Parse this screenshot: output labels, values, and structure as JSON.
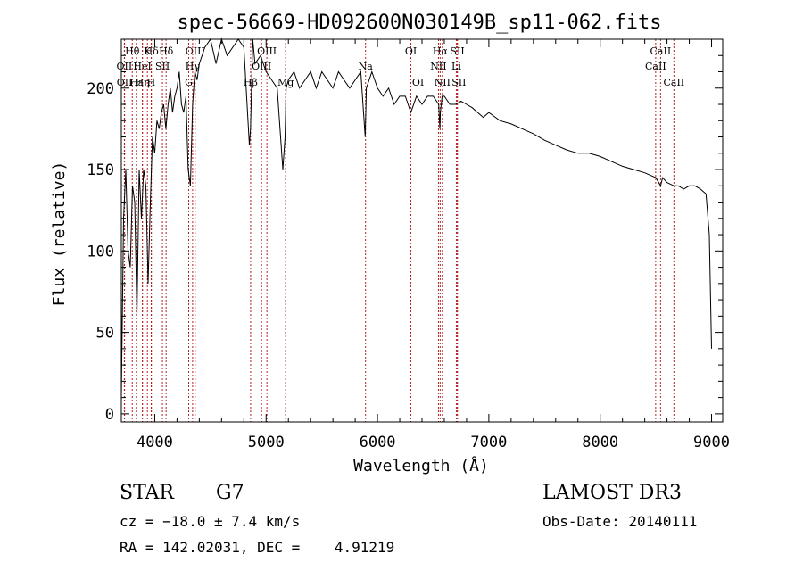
{
  "chart_data": {
    "type": "line",
    "title": "spec-56669-HD092600N030149B_sp11-062.fits",
    "xlabel": "Wavelength (Å)",
    "ylabel": "Flux (relative)",
    "xlim": [
      3700,
      9100
    ],
    "ylim": [
      -5,
      230
    ],
    "x_ticks": [
      4000,
      5000,
      6000,
      7000,
      8000,
      9000
    ],
    "y_ticks": [
      0,
      50,
      100,
      150,
      200
    ],
    "grid": false,
    "line_color": "#000000",
    "marker_color": "#b22222",
    "series": [
      {
        "name": "spectrum",
        "x": [
          3700,
          3720,
          3740,
          3760,
          3780,
          3800,
          3820,
          3840,
          3860,
          3880,
          3900,
          3920,
          3940,
          3960,
          3980,
          4000,
          4020,
          4040,
          4060,
          4080,
          4100,
          4120,
          4140,
          4160,
          4180,
          4200,
          4220,
          4240,
          4260,
          4280,
          4300,
          4320,
          4340,
          4360,
          4380,
          4400,
          4450,
          4500,
          4550,
          4600,
          4650,
          4700,
          4750,
          4800,
          4850,
          4860,
          4880,
          4900,
          4950,
          5000,
          5050,
          5100,
          5150,
          5170,
          5180,
          5200,
          5250,
          5300,
          5350,
          5400,
          5450,
          5500,
          5550,
          5600,
          5650,
          5700,
          5750,
          5800,
          5850,
          5890,
          5895,
          5900,
          5950,
          6000,
          6050,
          6100,
          6150,
          6200,
          6250,
          6300,
          6350,
          6400,
          6450,
          6500,
          6550,
          6560,
          6565,
          6580,
          6600,
          6650,
          6700,
          6750,
          6800,
          6850,
          6900,
          6950,
          7000,
          7100,
          7200,
          7300,
          7400,
          7500,
          7600,
          7700,
          7800,
          7900,
          8000,
          8100,
          8200,
          8300,
          8400,
          8500,
          8542,
          8560,
          8600,
          8662,
          8700,
          8750,
          8800,
          8850,
          8900,
          8950,
          8980,
          9000
        ],
        "y": [
          10,
          120,
          150,
          100,
          90,
          140,
          130,
          60,
          150,
          120,
          150,
          140,
          80,
          130,
          170,
          160,
          180,
          175,
          185,
          190,
          175,
          190,
          200,
          185,
          195,
          200,
          210,
          190,
          185,
          195,
          150,
          140,
          190,
          210,
          205,
          215,
          225,
          230,
          215,
          230,
          220,
          225,
          230,
          225,
          165,
          175,
          230,
          215,
          220,
          210,
          205,
          200,
          150,
          170,
          200,
          205,
          210,
          200,
          205,
          210,
          200,
          210,
          205,
          200,
          210,
          205,
          200,
          205,
          210,
          170,
          185,
          200,
          210,
          200,
          195,
          200,
          190,
          195,
          195,
          185,
          195,
          190,
          195,
          195,
          190,
          175,
          185,
          195,
          195,
          190,
          190,
          192,
          190,
          188,
          185,
          182,
          185,
          180,
          178,
          175,
          172,
          168,
          165,
          162,
          160,
          160,
          158,
          155,
          152,
          150,
          148,
          145,
          140,
          145,
          142,
          140,
          140,
          138,
          140,
          140,
          138,
          135,
          110,
          40
        ]
      }
    ],
    "line_markers": [
      {
        "label": "OII",
        "x": 3727,
        "row": 2
      },
      {
        "label": "OII",
        "x": 3729,
        "row": 3
      },
      {
        "label": "Hθ",
        "x": 3798,
        "row": 1
      },
      {
        "label": "Hε",
        "x": 3835,
        "row": 3
      },
      {
        "label": "HeI",
        "x": 3889,
        "row": 2
      },
      {
        "label": "Hδ",
        "x": 3970,
        "row": 1
      },
      {
        "label": "Hη",
        "x": 3890,
        "row": 3
      },
      {
        "label": "K",
        "x": 3934,
        "row": 1
      },
      {
        "label": "H",
        "x": 3968,
        "row": 3
      },
      {
        "label": "SII",
        "x": 4069,
        "row": 2
      },
      {
        "label": "Hδ",
        "x": 4102,
        "row": 1
      },
      {
        "label": "OIII",
        "x": 4363,
        "row": 1
      },
      {
        "label": "Hγ",
        "x": 4340,
        "row": 2
      },
      {
        "label": "G",
        "x": 4305,
        "row": 3
      },
      {
        "label": "Hβ",
        "x": 4861,
        "row": 3
      },
      {
        "label": "OIII",
        "x": 4959,
        "row": 2
      },
      {
        "label": "OIII",
        "x": 5007,
        "row": 1
      },
      {
        "label": "Mg",
        "x": 5175,
        "row": 3
      },
      {
        "label": "Na",
        "x": 5893,
        "row": 2
      },
      {
        "label": "OI",
        "x": 6300,
        "row": 1
      },
      {
        "label": "OI",
        "x": 6364,
        "row": 3
      },
      {
        "label": "Hα",
        "x": 6563,
        "row": 1
      },
      {
        "label": "NII",
        "x": 6548,
        "row": 2
      },
      {
        "label": "NII",
        "x": 6583,
        "row": 3
      },
      {
        "label": "SII",
        "x": 6717,
        "row": 1
      },
      {
        "label": "Li",
        "x": 6708,
        "row": 2
      },
      {
        "label": "SII",
        "x": 6731,
        "row": 3
      },
      {
        "label": "CaII",
        "x": 8542,
        "row": 1
      },
      {
        "label": "CaII",
        "x": 8498,
        "row": 2
      },
      {
        "label": "CaII",
        "x": 8662,
        "row": 3
      }
    ]
  },
  "info": {
    "object_class": "STAR",
    "subclass": "G7",
    "survey": "LAMOST DR3",
    "cz": "cz = −18.0 ± 7.4 km/s",
    "obs_date": "Obs-Date: 20140111",
    "coords": "RA = 142.02031, DEC =    4.91219"
  }
}
